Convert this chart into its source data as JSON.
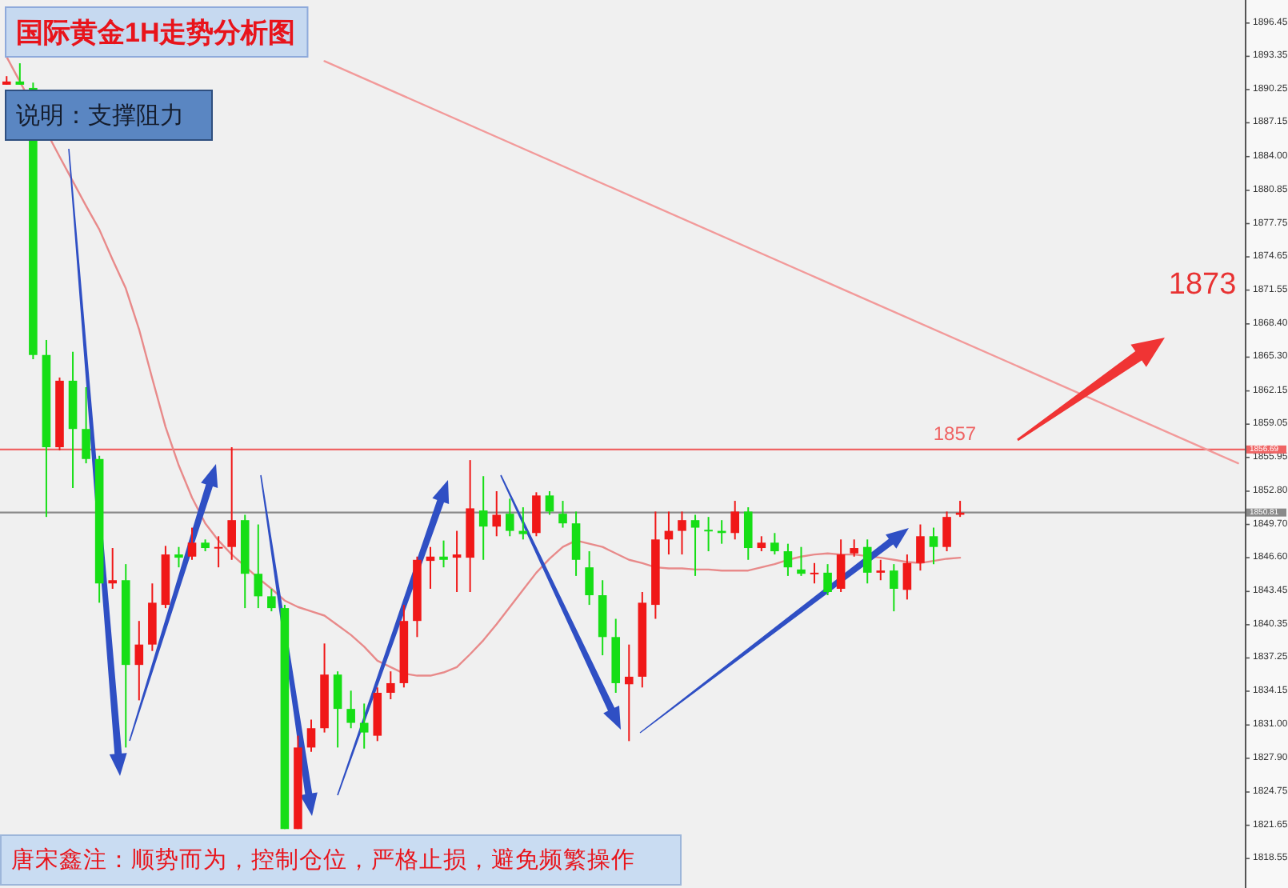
{
  "chart_data": {
    "type": "candlestick",
    "title": "国际黄金1H走势分析图",
    "subtitle": "说明：支撑阻力",
    "categories": [
      null,
      null,
      null,
      null,
      null,
      null,
      null,
      null,
      null,
      null,
      null,
      null,
      null,
      null,
      null,
      null,
      null,
      null,
      null,
      null,
      null,
      null,
      null,
      null,
      null,
      null,
      null,
      null,
      null,
      null,
      null,
      null,
      null,
      null,
      null,
      null,
      null,
      null,
      null,
      null,
      null,
      null,
      null,
      null,
      null,
      null,
      null,
      null,
      null,
      null,
      null,
      null,
      null,
      null,
      null,
      null,
      null,
      null,
      null,
      null,
      null,
      null,
      null,
      null,
      null,
      null,
      null,
      null,
      null,
      null,
      null,
      null,
      null,
      null,
      null,
      null,
      null,
      null,
      null,
      null,
      null,
      null,
      null,
      null,
      null,
      null,
      null,
      null,
      null,
      null,
      null,
      null,
      null,
      null
    ],
    "ohlc": [
      [
        1890.7,
        1891.5,
        1890.7,
        1891.0
      ],
      [
        1891.0,
        1892.7,
        1890.7,
        1890.7
      ],
      [
        1890.4,
        1890.9,
        1865.1,
        1865.5
      ],
      [
        1865.5,
        1866.9,
        1850.4,
        1856.9
      ],
      [
        1856.9,
        1863.4,
        1856.6,
        1863.1
      ],
      [
        1863.1,
        1865.8,
        1853.1,
        1858.6
      ],
      [
        1858.6,
        1862.5,
        1855.4,
        1855.8
      ],
      [
        1855.8,
        1856.1,
        1842.4,
        1844.2
      ],
      [
        1844.2,
        1847.5,
        1843.7,
        1844.5
      ],
      [
        1844.5,
        1846.0,
        1828.9,
        1836.6
      ],
      [
        1836.6,
        1840.7,
        1833.3,
        1838.5
      ],
      [
        1838.5,
        1844.2,
        1837.9,
        1842.4
      ],
      [
        1842.2,
        1847.7,
        1841.9,
        1846.9
      ],
      [
        1846.9,
        1847.6,
        1845.7,
        1846.6
      ],
      [
        1846.7,
        1849.4,
        1846.4,
        1848.0
      ],
      [
        1848.0,
        1848.3,
        1847.2,
        1847.5
      ],
      [
        1847.5,
        1848.6,
        1845.7,
        1847.6
      ],
      [
        1847.6,
        1856.9,
        1846.4,
        1850.1
      ],
      [
        1850.1,
        1850.6,
        1841.9,
        1845.1
      ],
      [
        1845.1,
        1849.7,
        1841.9,
        1843.0
      ],
      [
        1843.0,
        1843.7,
        1841.6,
        1841.9
      ],
      [
        1841.9,
        1842.2,
        1821.3,
        1821.3
      ],
      [
        1821.3,
        1830.0,
        1821.3,
        1828.9
      ],
      [
        1828.9,
        1831.5,
        1828.5,
        1830.7
      ],
      [
        1830.7,
        1838.6,
        1830.3,
        1835.7
      ],
      [
        1835.7,
        1836.0,
        1828.9,
        1832.5
      ],
      [
        1832.5,
        1834.2,
        1830.7,
        1831.2
      ],
      [
        1831.2,
        1833.0,
        1828.8,
        1830.3
      ],
      [
        1830.0,
        1834.5,
        1829.5,
        1834.0
      ],
      [
        1834.0,
        1836.0,
        1833.4,
        1834.9
      ],
      [
        1834.9,
        1842.2,
        1834.5,
        1840.7
      ],
      [
        1840.7,
        1846.7,
        1839.2,
        1846.4
      ],
      [
        1846.3,
        1847.6,
        1843.7,
        1846.7
      ],
      [
        1846.7,
        1848.2,
        1845.7,
        1846.4
      ],
      [
        1846.6,
        1849.1,
        1843.4,
        1846.9
      ],
      [
        1846.6,
        1855.7,
        1843.4,
        1851.2
      ],
      [
        1851.0,
        1854.2,
        1846.4,
        1849.5
      ],
      [
        1849.5,
        1852.8,
        1848.6,
        1850.6
      ],
      [
        1850.7,
        1852.1,
        1848.6,
        1849.1
      ],
      [
        1849.1,
        1851.3,
        1848.3,
        1848.8
      ],
      [
        1848.9,
        1852.7,
        1848.6,
        1852.4
      ],
      [
        1852.4,
        1852.8,
        1850.6,
        1850.9
      ],
      [
        1850.7,
        1851.9,
        1849.4,
        1849.8
      ],
      [
        1849.8,
        1850.9,
        1844.9,
        1846.4
      ],
      [
        1845.7,
        1847.2,
        1842.2,
        1843.1
      ],
      [
        1843.1,
        1844.5,
        1837.5,
        1839.2
      ],
      [
        1839.2,
        1840.9,
        1834.0,
        1834.9
      ],
      [
        1834.8,
        1838.5,
        1829.5,
        1835.5
      ],
      [
        1835.5,
        1843.4,
        1834.5,
        1842.4
      ],
      [
        1842.2,
        1850.9,
        1840.9,
        1848.3
      ],
      [
        1848.3,
        1850.9,
        1846.9,
        1849.1
      ],
      [
        1849.1,
        1850.9,
        1846.9,
        1850.1
      ],
      [
        1850.1,
        1850.6,
        1844.9,
        1849.4
      ],
      [
        1849.2,
        1850.4,
        1847.2,
        1849.1
      ],
      [
        1849.1,
        1850.1,
        1847.9,
        1848.9
      ],
      [
        1848.9,
        1851.9,
        1848.3,
        1850.9
      ],
      [
        1850.9,
        1851.3,
        1846.4,
        1847.5
      ],
      [
        1847.5,
        1848.6,
        1847.2,
        1848.0
      ],
      [
        1848.0,
        1848.9,
        1846.9,
        1847.2
      ],
      [
        1847.2,
        1847.9,
        1844.9,
        1845.7
      ],
      [
        1845.5,
        1847.6,
        1844.9,
        1845.1
      ],
      [
        1845.1,
        1846.1,
        1844.2,
        1845.2
      ],
      [
        1845.2,
        1846.0,
        1843.1,
        1843.4
      ],
      [
        1843.7,
        1848.3,
        1843.4,
        1846.9
      ],
      [
        1847.0,
        1848.3,
        1846.7,
        1847.5
      ],
      [
        1847.6,
        1848.3,
        1844.2,
        1845.2
      ],
      [
        1845.2,
        1846.4,
        1844.5,
        1845.4
      ],
      [
        1845.4,
        1846.0,
        1841.6,
        1843.7
      ],
      [
        1843.6,
        1846.9,
        1842.7,
        1846.1
      ],
      [
        1846.1,
        1849.7,
        1845.4,
        1848.6
      ],
      [
        1848.6,
        1849.4,
        1846.0,
        1847.6
      ],
      [
        1847.6,
        1850.9,
        1847.2,
        1850.4
      ],
      [
        1850.6,
        1851.9,
        1850.4,
        1850.8
      ],
      null,
      null,
      null,
      null,
      null,
      null,
      null,
      null,
      null,
      null,
      null,
      null,
      null,
      null,
      null,
      null,
      null,
      null,
      null,
      null,
      null
    ],
    "colors": [
      "#f01818",
      "#16de16",
      "#16de16",
      "#16de16",
      "#f01818",
      "#16de16",
      "#16de16",
      "#16de16",
      "#f01818",
      "#16de16",
      "#f01818",
      "#f01818",
      "#f01818",
      "#16de16",
      "#f01818",
      "#16de16",
      "#f01818",
      "#f01818",
      "#16de16",
      "#16de16",
      "#16de16",
      "#16de16",
      "#f01818",
      "#f01818",
      "#f01818",
      "#16de16",
      "#16de16",
      "#16de16",
      "#f01818",
      "#f01818",
      "#f01818",
      "#f01818",
      "#f01818",
      "#16de16",
      "#f01818",
      "#f01818",
      "#16de16",
      "#f01818",
      "#16de16",
      "#16de16",
      "#f01818",
      "#16de16",
      "#16de16",
      "#16de16",
      "#16de16",
      "#16de16",
      "#16de16",
      "#f01818",
      "#f01818",
      "#f01818",
      "#f01818",
      "#f01818",
      "#16de16",
      "#16de16",
      "#16de16",
      "#f01818",
      "#16de16",
      "#f01818",
      "#16de16",
      "#16de16",
      "#16de16",
      "#f01818",
      "#16de16",
      "#f01818",
      "#f01818",
      "#16de16",
      "#f01818",
      "#16de16",
      "#f01818",
      "#f01818",
      "#16de16",
      "#f01818",
      "#f01818",
      null,
      null,
      null,
      null,
      null,
      null,
      null,
      null,
      null,
      null,
      null,
      null,
      null,
      null,
      null,
      null,
      null,
      null,
      null,
      null,
      null
    ],
    "series": [
      {
        "type": "line",
        "color": "#e88a8a",
        "values": [
          1893.3,
          1891.0,
          null,
          null,
          1884.0,
          1881.7,
          1879.4,
          1877.2,
          1874.4,
          1871.7,
          1867.9,
          1863.3,
          1858.8,
          1855.2,
          1852.2,
          1849.8,
          1848.2,
          1846.9,
          1845.8,
          1844.7,
          1843.7,
          1842.6,
          1842.0,
          1841.6,
          1841.2,
          1840.3,
          1839.4,
          1838.3,
          1837.0,
          1836.4,
          1835.8,
          1835.6,
          1835.6,
          1835.9,
          1836.4,
          1837.6,
          1838.9,
          1840.4,
          1842.0,
          1843.6,
          1845.2,
          1846.5,
          1847.6,
          1848.2,
          1847.9,
          1847.6,
          1847.0,
          1846.4,
          1846.1,
          1845.7,
          1845.6,
          1845.6,
          1845.5,
          1845.5,
          1845.4,
          1845.4,
          1845.4,
          1845.7,
          1846.0,
          1846.4,
          1846.7,
          1846.9,
          1847.0,
          1846.9,
          1846.9,
          null,
          1846.6,
          1846.4,
          1846.2,
          1846.1,
          1846.3,
          1846.5,
          1846.6,
          null,
          null,
          null,
          null,
          null,
          null,
          null,
          null,
          null,
          null,
          null,
          null,
          null,
          null,
          null,
          null,
          null,
          null,
          null,
          null,
          null
        ]
      },
      {
        "type": "line",
        "color": "#f29a9a",
        "values": [
          null,
          null,
          null,
          null,
          null,
          null,
          null,
          null,
          null,
          null,
          null,
          null,
          null,
          null,
          null,
          null,
          null,
          null,
          null,
          null,
          null,
          null,
          null,
          null,
          1892.9,
          null,
          null,
          null,
          null,
          null,
          null,
          null,
          null,
          null,
          null,
          null,
          null,
          null,
          null,
          null,
          null,
          null,
          null,
          null,
          null,
          null,
          null,
          null,
          null,
          null,
          null,
          null,
          null,
          null,
          null,
          null,
          null,
          null,
          null,
          null,
          null,
          null,
          null,
          null,
          null,
          null,
          null,
          null,
          null,
          null,
          null,
          null,
          null,
          null,
          null,
          null,
          null,
          null,
          null,
          null,
          null,
          null,
          null,
          null,
          null,
          null,
          null,
          null,
          null,
          null,
          null,
          null,
          null,
          1855.4
        ]
      }
    ],
    "ylim": [
      1815.8,
      1898.6
    ],
    "yticks": [
      1896.45,
      1893.35,
      1890.25,
      1887.15,
      {
        "value": 1884,
        "label": "1884.00"
      },
      1880.85,
      1877.75,
      1874.65,
      1871.55,
      {
        "value": 1868.4,
        "label": "1868.40"
      },
      {
        "value": 1865.3,
        "label": "1865.30"
      },
      1862.15,
      1859.05,
      1856.69,
      1855.95,
      {
        "value": 1852.8,
        "label": "1852.80"
      },
      1850.81,
      {
        "value": 1849.7,
        "label": "1849.70"
      },
      {
        "value": 1846.6,
        "label": "1846.60"
      },
      1843.45,
      1840.35,
      1837.25,
      1834.15,
      {
        "value": 1831,
        "label": "1831.00"
      },
      {
        "value": 1827.9,
        "label": "1827.90"
      },
      1824.75,
      1821.65,
      1818.55
    ],
    "ref_lines": [
      {
        "axis": "y",
        "value": 1856.69,
        "label": "1857",
        "color": "#ef6464"
      },
      {
        "axis": "y",
        "value": 1850.81,
        "color": "#8a8a8a"
      }
    ],
    "annotations": [
      "1873",
      "唐宋鑫注：顺势而为，控制仓位，严格止损，避免频繁操作"
    ],
    "tick_labels": "y"
  }
}
